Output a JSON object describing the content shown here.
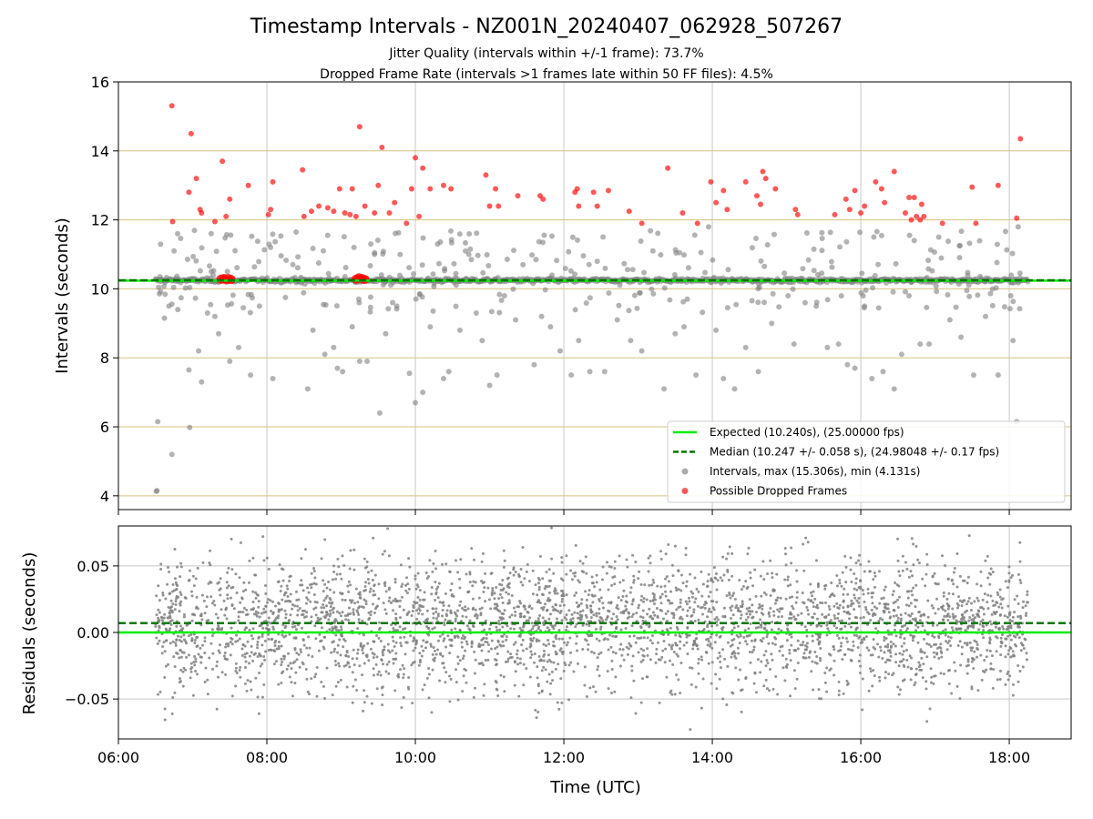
{
  "title": "Timestamp Intervals - NZ001N_20240407_062928_507267",
  "subtitle1": "Jitter Quality (intervals within +/-1 frame): 73.7%",
  "subtitle2": "Dropped Frame Rate (intervals >1 frames late within 50 FF files): 4.5%",
  "colors": {
    "expected": "#00ee00",
    "median": "#007700",
    "intervals": "#808080",
    "dropped": "#ff0000",
    "hgrid_top": "#d9c080",
    "grid": "#c8c8c8"
  },
  "chart_data": [
    {
      "type": "scatter",
      "ylabel": "Intervals (seconds)",
      "xlim": [
        "06:00",
        "18:50"
      ],
      "ylim": [
        3.6,
        16
      ],
      "yticks": [
        4,
        6,
        8,
        10,
        12,
        14,
        16
      ],
      "xticks": [
        "06:00",
        "08:00",
        "10:00",
        "12:00",
        "14:00",
        "16:00",
        "18:00"
      ],
      "grid": true,
      "legend_position": "lower-right",
      "legend": [
        {
          "key": "expected",
          "label": "Expected (10.240s), (25.00000 fps)"
        },
        {
          "key": "median",
          "label": "Median (10.247 +/- 0.058 s), (24.98048 +/- 0.17 fps)"
        },
        {
          "key": "intervals",
          "label": "Intervals, max (15.306s), min (4.131s)"
        },
        {
          "key": "dropped",
          "label": "Possible Dropped Frames"
        }
      ],
      "expected": 10.24,
      "median": 10.247,
      "x_range": [
        "06:30",
        "18:15"
      ],
      "intervals": [
        [
          6.51,
          4.131
        ],
        [
          6.52,
          4.15
        ],
        [
          6.53,
          6.15
        ],
        [
          6.72,
          5.2
        ],
        [
          6.96,
          5.98
        ],
        [
          6.62,
          9.15
        ],
        [
          6.68,
          9.5
        ],
        [
          6.75,
          11.1
        ],
        [
          6.8,
          9.4
        ],
        [
          6.95,
          7.65
        ],
        [
          7.08,
          8.2
        ],
        [
          7.12,
          7.3
        ],
        [
          7.2,
          9.3
        ],
        [
          7.25,
          11.6
        ],
        [
          7.3,
          9.2
        ],
        [
          7.35,
          8.7
        ],
        [
          7.5,
          7.9
        ],
        [
          7.62,
          8.3
        ],
        [
          7.78,
          7.5
        ],
        [
          7.9,
          9.5
        ],
        [
          8.05,
          11.2
        ],
        [
          8.08,
          7.4
        ],
        [
          8.25,
          9.75
        ],
        [
          8.35,
          10.7
        ],
        [
          8.55,
          7.1
        ],
        [
          8.62,
          8.8
        ],
        [
          8.78,
          8.1
        ],
        [
          8.9,
          8.3
        ],
        [
          8.95,
          7.7
        ],
        [
          9.02,
          7.6
        ],
        [
          9.15,
          8.9
        ],
        [
          9.25,
          7.9
        ],
        [
          9.35,
          7.9
        ],
        [
          9.4,
          11.3
        ],
        [
          9.45,
          11.0
        ],
        [
          9.52,
          6.4
        ],
        [
          9.6,
          8.7
        ],
        [
          9.75,
          9.5
        ],
        [
          9.92,
          7.55
        ],
        [
          10.0,
          6.7
        ],
        [
          10.1,
          7.0
        ],
        [
          10.2,
          8.9
        ],
        [
          10.3,
          11.3
        ],
        [
          10.38,
          7.4
        ],
        [
          10.45,
          7.6
        ],
        [
          10.6,
          8.8
        ],
        [
          10.72,
          11.0
        ],
        [
          10.82,
          9.3
        ],
        [
          10.9,
          8.5
        ],
        [
          11.0,
          7.2
        ],
        [
          11.1,
          7.5
        ],
        [
          11.2,
          9.8
        ],
        [
          11.35,
          9.1
        ],
        [
          11.45,
          10.7
        ],
        [
          11.6,
          7.8
        ],
        [
          11.7,
          9.2
        ],
        [
          11.82,
          8.9
        ],
        [
          11.95,
          8.2
        ],
        [
          12.1,
          7.5
        ],
        [
          12.2,
          8.5
        ],
        [
          12.35,
          7.6
        ],
        [
          12.45,
          10.8
        ],
        [
          12.55,
          7.6
        ],
        [
          12.72,
          9.1
        ],
        [
          12.9,
          8.5
        ],
        [
          13.05,
          8.2
        ],
        [
          13.2,
          11.1
        ],
        [
          13.35,
          7.1
        ],
        [
          13.5,
          8.7
        ],
        [
          13.62,
          8.9
        ],
        [
          13.78,
          7.5
        ],
        [
          13.95,
          11.8
        ],
        [
          14.05,
          8.8
        ],
        [
          14.15,
          7.4
        ],
        [
          14.3,
          7.1
        ],
        [
          14.45,
          8.3
        ],
        [
          14.62,
          7.6
        ],
        [
          14.8,
          9.0
        ],
        [
          15.02,
          9.8
        ],
        [
          15.1,
          8.4
        ],
        [
          15.25,
          9.6
        ],
        [
          15.4,
          9.5
        ],
        [
          15.55,
          8.3
        ],
        [
          15.7,
          8.4
        ],
        [
          15.82,
          7.8
        ],
        [
          15.92,
          7.7
        ],
        [
          16.05,
          9.5
        ],
        [
          16.15,
          7.4
        ],
        [
          16.3,
          7.6
        ],
        [
          16.45,
          7.1
        ],
        [
          16.55,
          8.1
        ],
        [
          16.65,
          9.8
        ],
        [
          16.8,
          8.4
        ],
        [
          16.92,
          8.4
        ],
        [
          17.05,
          11.5
        ],
        [
          17.2,
          9.1
        ],
        [
          17.35,
          8.6
        ],
        [
          17.52,
          7.5
        ],
        [
          17.68,
          9.2
        ],
        [
          17.85,
          7.5
        ],
        [
          18.02,
          9.8
        ],
        [
          18.1,
          6.15
        ],
        [
          18.05,
          8.5
        ],
        [
          18.12,
          11.8
        ]
      ],
      "dropped": [
        [
          6.72,
          15.306
        ],
        [
          6.73,
          11.95
        ],
        [
          6.95,
          12.8
        ],
        [
          6.98,
          14.5
        ],
        [
          7.05,
          13.2
        ],
        [
          7.1,
          12.3
        ],
        [
          7.12,
          12.2
        ],
        [
          7.3,
          11.95
        ],
        [
          7.4,
          13.7
        ],
        [
          7.45,
          12.1
        ],
        [
          7.5,
          12.6
        ],
        [
          7.75,
          13.0
        ],
        [
          8.02,
          12.15
        ],
        [
          8.05,
          12.3
        ],
        [
          8.08,
          13.1
        ],
        [
          8.48,
          13.45
        ],
        [
          8.5,
          12.1
        ],
        [
          8.6,
          12.25
        ],
        [
          8.7,
          12.4
        ],
        [
          8.82,
          12.35
        ],
        [
          8.9,
          12.25
        ],
        [
          8.98,
          12.9
        ],
        [
          9.05,
          12.2
        ],
        [
          9.12,
          12.15
        ],
        [
          9.15,
          12.9
        ],
        [
          9.2,
          12.1
        ],
        [
          9.25,
          14.7
        ],
        [
          9.32,
          12.4
        ],
        [
          9.45,
          12.2
        ],
        [
          9.5,
          13.0
        ],
        [
          9.55,
          14.1
        ],
        [
          9.65,
          12.2
        ],
        [
          9.72,
          12.5
        ],
        [
          9.88,
          11.9
        ],
        [
          9.95,
          12.9
        ],
        [
          10.0,
          13.8
        ],
        [
          10.05,
          12.1
        ],
        [
          10.1,
          13.5
        ],
        [
          10.2,
          12.9
        ],
        [
          10.38,
          13.0
        ],
        [
          10.48,
          12.9
        ],
        [
          10.95,
          13.3
        ],
        [
          11.0,
          12.4
        ],
        [
          11.08,
          12.9
        ],
        [
          11.12,
          12.4
        ],
        [
          11.38,
          12.7
        ],
        [
          11.68,
          12.7
        ],
        [
          11.72,
          12.6
        ],
        [
          12.15,
          12.8
        ],
        [
          12.18,
          12.9
        ],
        [
          12.2,
          12.4
        ],
        [
          12.4,
          12.8
        ],
        [
          12.45,
          12.4
        ],
        [
          12.6,
          12.85
        ],
        [
          12.88,
          12.25
        ],
        [
          13.05,
          11.9
        ],
        [
          13.4,
          13.5
        ],
        [
          13.6,
          12.2
        ],
        [
          13.8,
          11.9
        ],
        [
          13.98,
          13.1
        ],
        [
          14.05,
          12.5
        ],
        [
          14.15,
          12.85
        ],
        [
          14.2,
          12.3
        ],
        [
          14.45,
          13.1
        ],
        [
          14.6,
          12.7
        ],
        [
          14.65,
          12.45
        ],
        [
          14.68,
          13.4
        ],
        [
          14.72,
          13.2
        ],
        [
          14.85,
          12.9
        ],
        [
          15.12,
          12.3
        ],
        [
          15.15,
          12.15
        ],
        [
          15.65,
          12.15
        ],
        [
          15.8,
          12.6
        ],
        [
          15.85,
          12.3
        ],
        [
          15.92,
          12.85
        ],
        [
          16.0,
          12.2
        ],
        [
          16.05,
          12.4
        ],
        [
          16.2,
          13.1
        ],
        [
          16.28,
          12.9
        ],
        [
          16.32,
          12.5
        ],
        [
          16.45,
          13.4
        ],
        [
          16.6,
          12.2
        ],
        [
          16.65,
          12.65
        ],
        [
          16.68,
          12.0
        ],
        [
          16.72,
          12.65
        ],
        [
          16.75,
          12.1
        ],
        [
          16.8,
          12.0
        ],
        [
          16.82,
          12.45
        ],
        [
          16.85,
          12.1
        ],
        [
          17.1,
          11.9
        ],
        [
          17.5,
          12.95
        ],
        [
          17.55,
          11.9
        ],
        [
          17.85,
          13.0
        ],
        [
          18.1,
          12.05
        ],
        [
          18.15,
          14.35
        ]
      ],
      "dropped_clusters": [
        [
          7.38,
          10.28
        ],
        [
          7.42,
          10.3
        ],
        [
          7.45,
          10.26
        ],
        [
          7.48,
          10.3
        ],
        [
          7.52,
          10.27
        ],
        [
          9.2,
          10.28
        ],
        [
          9.24,
          10.32
        ],
        [
          9.28,
          10.3
        ],
        [
          9.32,
          10.27
        ]
      ]
    },
    {
      "type": "scatter",
      "ylabel": "Residuals (seconds)",
      "xlabel": "Time (UTC)",
      "xlim": [
        "06:00",
        "18:50"
      ],
      "ylim": [
        -0.08,
        0.08
      ],
      "yticks": [
        -0.05,
        0.0,
        0.05
      ],
      "ytick_labels": [
        "−0.05",
        "0.00",
        "0.05"
      ],
      "xticks": [
        "06:00",
        "08:00",
        "10:00",
        "12:00",
        "14:00",
        "16:00",
        "18:00"
      ],
      "grid": true,
      "expected": 0.0,
      "median": 0.007,
      "residual_spread": 0.025,
      "point_count": 3500
    }
  ]
}
